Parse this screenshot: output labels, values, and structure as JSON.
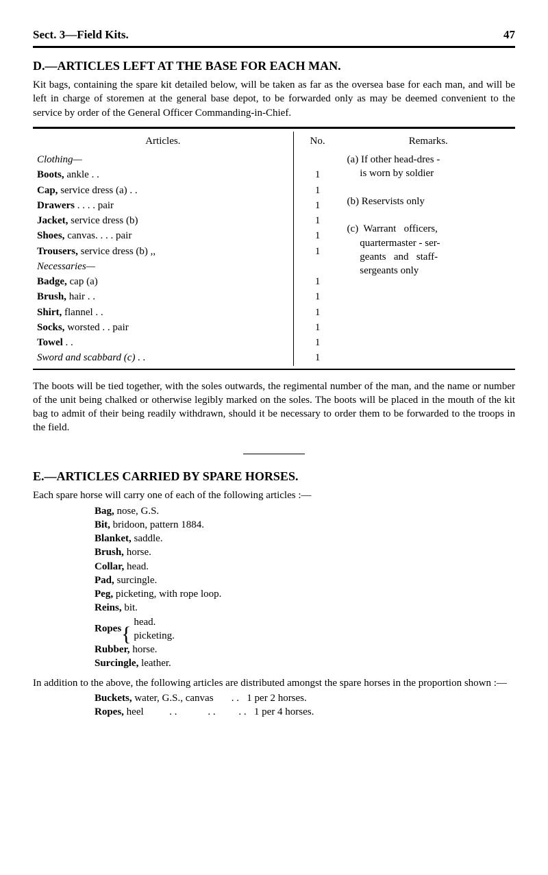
{
  "page": {
    "section_header": "Sect. 3—Field Kits.",
    "page_number": "47"
  },
  "section_d": {
    "heading": "D.—ARTICLES LEFT AT THE BASE FOR EACH MAN.",
    "intro": "Kit bags, containing the spare kit detailed below, will be taken as far as the oversea base for each man, and will be left in charge of storemen at the general base depot, to be forwarded only as may be deemed convenient to the service by order of the General Officer Commanding-in-Chief."
  },
  "table": {
    "headers": {
      "articles": "Articles.",
      "no": "No.",
      "remarks": "Remarks."
    },
    "groups": [
      {
        "group_label": "Clothing—",
        "rows": [
          {
            "name": "Boots,",
            "rest": " ankle  . .",
            "qty": "1"
          },
          {
            "name": "Cap,",
            "rest": " service dress (a) . .",
            "qty": "1"
          },
          {
            "name": "Drawers",
            "rest": "     . .          . .        pair",
            "qty": "1"
          },
          {
            "name": "Jacket,",
            "rest": " service dress (b)",
            "qty": "1"
          },
          {
            "name": "Shoes,",
            "rest": " canvas. .        . .      pair",
            "qty": "1"
          },
          {
            "name": "Trousers,",
            "rest": " service dress (b)      ,,",
            "qty": "1"
          }
        ]
      },
      {
        "group_label": "Necessaries—",
        "rows": [
          {
            "name": "Badge,",
            "rest": " cap (a)",
            "qty": "1"
          },
          {
            "name": "Brush,",
            "rest": " hair  . .",
            "qty": "1"
          },
          {
            "name": "Shirt,",
            "rest": " flannel . .",
            "qty": "1"
          },
          {
            "name": "Socks,",
            "rest": " worsted          . .     pair",
            "qty": "1"
          },
          {
            "name": "Towel",
            "rest": "           . .",
            "qty": "1"
          }
        ]
      }
    ],
    "final_row": {
      "label": "Sword and scabbard (c)  . .",
      "qty": "1"
    },
    "remarks_lines": [
      "(a) If other head-dres -",
      "     is worn by soldier",
      "",
      "(b) Reservists only",
      "",
      "(c)  Warrant   officers,",
      "     quartermaster - ser-",
      "     geants   and   staff-",
      "     sergeants only"
    ]
  },
  "post_table": "The boots will be tied together, with the soles outwards, the regimental number of the man, and the name or number of the unit being chalked or otherwise legibly marked on the soles.   The boots will be placed in the mouth of the kit bag to admit of their being readily withdrawn, should it be necessary to order them to be forwarded to the troops in the field.",
  "section_e": {
    "heading": "E.—ARTICLES CARRIED BY SPARE HORSES.",
    "intro": "Each spare horse will carry one of each of the following articles :—",
    "items": [
      {
        "name": "Bag,",
        "rest": " nose, G.S."
      },
      {
        "name": "Bit,",
        "rest": " bridoon, pattern 1884."
      },
      {
        "name": "Blanket,",
        "rest": " saddle."
      },
      {
        "name": "Brush,",
        "rest": " horse."
      },
      {
        "name": "Collar,",
        "rest": " head."
      },
      {
        "name": "Pad,",
        "rest": " surcingle."
      },
      {
        "name": "Peg,",
        "rest": " picketing, with rope loop."
      },
      {
        "name": "Reins,",
        "rest": " bit."
      }
    ],
    "ropes_label": "Ropes",
    "ropes_sub1": "head.",
    "ropes_sub2": "picketing.",
    "items2": [
      {
        "name": "Rubber,",
        "rest": " horse."
      },
      {
        "name": "Surcingle,",
        "rest": " leather."
      }
    ],
    "additional": "In addition to the above, the following articles are distributed amongst the spare horses in the proportion shown :—",
    "final": [
      {
        "name": "Buckets,",
        "rest": " water, G.S., canvas       . .   1 per 2 horses."
      },
      {
        "name": "Ropes,",
        "rest": " heel          . .            . .         . .   1 per 4 horses."
      }
    ]
  }
}
